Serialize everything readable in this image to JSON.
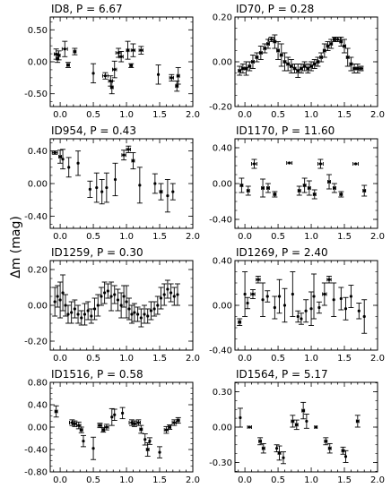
{
  "figure": {
    "ylabel": "Δm (mag)"
  },
  "chart_data": [
    {
      "type": "scatter",
      "title": "ID8, P = 6.67",
      "xlim": [
        -0.15,
        2.0
      ],
      "ylim": [
        -0.7,
        0.7
      ],
      "xticks": [
        "0.0",
        "0.5",
        "1.0",
        "1.5",
        "2.0"
      ],
      "yticks": [
        "-0.50",
        "0.00",
        "0.50"
      ],
      "ytick_values": [
        -0.5,
        0.0,
        0.5
      ],
      "x": [
        -0.06,
        -0.04,
        -0.02,
        0.07,
        0.12,
        0.22,
        0.5,
        0.68,
        0.76,
        0.78,
        0.82,
        0.88,
        0.92,
        1.02,
        1.07,
        1.1,
        1.22,
        1.48,
        1.68,
        1.76,
        1.78
      ],
      "y": [
        0.12,
        0.05,
        0.1,
        0.2,
        -0.05,
        0.16,
        -0.18,
        -0.22,
        -0.3,
        -0.4,
        -0.12,
        0.14,
        0.08,
        0.18,
        -0.06,
        0.18,
        0.18,
        -0.2,
        -0.25,
        -0.38,
        -0.22
      ],
      "yerr": [
        0.08,
        0.06,
        0.07,
        0.12,
        0.04,
        0.05,
        0.15,
        0.05,
        0.08,
        0.1,
        0.13,
        0.07,
        0.08,
        0.14,
        0.03,
        0.1,
        0.06,
        0.15,
        0.05,
        0.08,
        0.13
      ],
      "xerr": [
        0.03,
        0.02,
        0.02,
        0.04,
        0.02,
        0.02,
        0.0,
        0.04,
        0.03,
        0.02,
        0.03,
        0.04,
        0.03,
        0.02,
        0.02,
        0.03,
        0.03,
        0.0,
        0.03,
        0.02,
        0.02
      ]
    },
    {
      "type": "scatter",
      "title": "ID70, P = 0.28",
      "xlim": [
        -0.15,
        2.0
      ],
      "ylim": [
        -0.2,
        0.2
      ],
      "xticks": [
        "0.0",
        "0.5",
        "1.0",
        "1.5",
        "2.0"
      ],
      "yticks": [
        "-0.20",
        "0.00",
        "0.20"
      ],
      "ytick_values": [
        -0.2,
        0.0,
        0.2
      ],
      "x": [
        -0.08,
        -0.03,
        0.02,
        0.07,
        0.12,
        0.18,
        0.24,
        0.3,
        0.35,
        0.4,
        0.45,
        0.5,
        0.55,
        0.6,
        0.65,
        0.7,
        0.75,
        0.8,
        0.85,
        0.9,
        0.95,
        1.0,
        1.05,
        1.1,
        1.15,
        1.2,
        1.25,
        1.3,
        1.35,
        1.4,
        1.45,
        1.5,
        1.55,
        1.6,
        1.65,
        1.7,
        1.75
      ],
      "y": [
        -0.04,
        -0.03,
        -0.03,
        -0.02,
        0.0,
        0.02,
        0.04,
        0.06,
        0.08,
        0.1,
        0.09,
        0.05,
        0.03,
        0.0,
        -0.01,
        -0.02,
        -0.03,
        -0.04,
        -0.03,
        -0.02,
        -0.03,
        -0.02,
        -0.01,
        0.0,
        0.02,
        0.05,
        0.07,
        0.08,
        0.1,
        0.1,
        0.09,
        0.07,
        0.02,
        -0.01,
        -0.03,
        -0.03,
        -0.03
      ],
      "yerr": [
        0.02,
        0.02,
        0.03,
        0.02,
        0.03,
        0.02,
        0.03,
        0.02,
        0.02,
        0.01,
        0.03,
        0.04,
        0.05,
        0.04,
        0.03,
        0.03,
        0.02,
        0.03,
        0.02,
        0.02,
        0.02,
        0.02,
        0.02,
        0.02,
        0.02,
        0.03,
        0.02,
        0.02,
        0.01,
        0.01,
        0.02,
        0.03,
        0.04,
        0.03,
        0.02,
        0.02,
        0.01
      ],
      "xerr": [
        0.02,
        0.02,
        0.02,
        0.02,
        0.02,
        0.02,
        0.02,
        0.02,
        0.02,
        0.04,
        0.02,
        0.02,
        0.02,
        0.02,
        0.02,
        0.02,
        0.02,
        0.02,
        0.02,
        0.02,
        0.02,
        0.02,
        0.02,
        0.02,
        0.02,
        0.02,
        0.02,
        0.02,
        0.02,
        0.04,
        0.02,
        0.02,
        0.02,
        0.02,
        0.02,
        0.02,
        0.03
      ]
    },
    {
      "type": "scatter",
      "title": "ID954, P = 0.43",
      "xlim": [
        -0.15,
        2.0
      ],
      "ylim": [
        -0.55,
        0.55
      ],
      "xticks": [
        "0.0",
        "0.5",
        "1.0",
        "1.5",
        "2.0"
      ],
      "yticks": [
        "-0.40",
        "0.00",
        "0.40"
      ],
      "ytick_values": [
        -0.4,
        0.0,
        0.4
      ],
      "x": [
        -0.08,
        0.0,
        0.04,
        0.13,
        0.27,
        0.45,
        0.55,
        0.63,
        0.7,
        0.83,
        0.96,
        1.03,
        1.1,
        1.2,
        1.43,
        1.52,
        1.62,
        1.7
      ],
      "y": [
        0.38,
        0.33,
        0.3,
        0.2,
        0.25,
        -0.07,
        -0.05,
        -0.1,
        -0.05,
        0.05,
        0.35,
        0.42,
        0.28,
        -0.02,
        0.0,
        -0.1,
        -0.15,
        -0.1
      ],
      "yerr": [
        0.02,
        0.08,
        0.12,
        0.12,
        0.15,
        0.1,
        0.18,
        0.15,
        0.18,
        0.2,
        0.06,
        0.04,
        0.1,
        0.22,
        0.12,
        0.1,
        0.2,
        0.1
      ],
      "xerr": [
        0.04,
        0.02,
        0.0,
        0.0,
        0.0,
        0.0,
        0.0,
        0.0,
        0.0,
        0.0,
        0.03,
        0.03,
        0.02,
        0.0,
        0.0,
        0.02,
        0.0,
        0.0
      ]
    },
    {
      "type": "scatter",
      "title": "ID1170, P = 11.60",
      "xlim": [
        -0.15,
        2.0
      ],
      "ylim": [
        -0.5,
        0.5
      ],
      "xticks": [
        "0.0",
        "0.5",
        "1.0",
        "1.5",
        "2.0"
      ],
      "yticks": [
        "-0.40",
        "0.00",
        "0.40"
      ],
      "ytick_values": [
        -0.4,
        0.0,
        0.4
      ],
      "x": [
        -0.05,
        0.05,
        0.14,
        0.27,
        0.35,
        0.45,
        0.67,
        0.82,
        0.9,
        0.97,
        1.05,
        1.14,
        1.27,
        1.35,
        1.45,
        1.67,
        1.8
      ],
      "y": [
        -0.02,
        -0.08,
        0.22,
        -0.05,
        -0.05,
        -0.12,
        0.23,
        -0.08,
        -0.02,
        -0.05,
        -0.12,
        0.22,
        0.02,
        -0.05,
        -0.12,
        0.22,
        -0.08
      ],
      "yerr": [
        0.08,
        0.05,
        0.05,
        0.1,
        0.05,
        0.03,
        0.0,
        0.05,
        0.08,
        0.08,
        0.05,
        0.05,
        0.08,
        0.05,
        0.03,
        0.0,
        0.06
      ],
      "xerr": [
        0.02,
        0.02,
        0.04,
        0.02,
        0.02,
        0.02,
        0.04,
        0.02,
        0.02,
        0.02,
        0.02,
        0.04,
        0.02,
        0.02,
        0.02,
        0.04,
        0.02
      ]
    },
    {
      "type": "scatter",
      "title": "ID1259, P = 0.30",
      "xlim": [
        -0.15,
        2.0
      ],
      "ylim": [
        -0.25,
        0.25
      ],
      "xticks": [
        "0.0",
        "0.5",
        "1.0",
        "1.5",
        "2.0"
      ],
      "yticks": [
        "-0.20",
        "0.00",
        "0.20"
      ],
      "ytick_values": [
        -0.2,
        0.0,
        0.2
      ],
      "x": [
        -0.08,
        -0.04,
        0.0,
        0.04,
        0.08,
        0.12,
        0.17,
        0.22,
        0.27,
        0.32,
        0.37,
        0.42,
        0.47,
        0.52,
        0.57,
        0.62,
        0.67,
        0.72,
        0.77,
        0.82,
        0.87,
        0.92,
        0.96,
        1.0,
        1.04,
        1.08,
        1.12,
        1.17,
        1.22,
        1.27,
        1.32,
        1.37,
        1.42,
        1.47,
        1.52,
        1.57,
        1.62,
        1.67,
        1.72,
        1.77
      ],
      "y": [
        0.02,
        0.05,
        0.03,
        0.07,
        0.0,
        -0.05,
        -0.04,
        -0.02,
        -0.05,
        -0.07,
        -0.05,
        -0.03,
        -0.06,
        -0.02,
        0.0,
        0.05,
        0.07,
        0.08,
        0.05,
        0.06,
        0.03,
        0.0,
        0.05,
        0.02,
        -0.02,
        -0.05,
        -0.04,
        -0.05,
        -0.07,
        -0.05,
        -0.06,
        -0.03,
        -0.02,
        0.0,
        0.04,
        0.06,
        0.09,
        0.07,
        0.05,
        0.06
      ],
      "yerr": [
        0.08,
        0.06,
        0.1,
        0.1,
        0.06,
        0.05,
        0.06,
        0.05,
        0.05,
        0.04,
        0.06,
        0.05,
        0.04,
        0.06,
        0.06,
        0.05,
        0.06,
        0.04,
        0.08,
        0.05,
        0.06,
        0.07,
        0.06,
        0.09,
        0.06,
        0.05,
        0.05,
        0.04,
        0.05,
        0.05,
        0.04,
        0.05,
        0.04,
        0.05,
        0.06,
        0.06,
        0.05,
        0.05,
        0.05,
        0.06
      ],
      "xerr": [
        0.0,
        0.0,
        0.0,
        0.0,
        0.0,
        0.0,
        0.0,
        0.0,
        0.0,
        0.0,
        0.0,
        0.0,
        0.0,
        0.0,
        0.0,
        0.0,
        0.0,
        0.0,
        0.0,
        0.0,
        0.0,
        0.0,
        0.0,
        0.0,
        0.0,
        0.0,
        0.0,
        0.0,
        0.0,
        0.0,
        0.0,
        0.0,
        0.0,
        0.0,
        0.0,
        0.0,
        0.0,
        0.0,
        0.0,
        0.0
      ]
    },
    {
      "type": "scatter",
      "title": "ID1269, P = 2.40",
      "xlim": [
        -0.15,
        2.0
      ],
      "ylim": [
        -0.4,
        0.4
      ],
      "xticks": [
        "0.0",
        "0.5",
        "1.0",
        "1.5",
        "2.0"
      ],
      "yticks": [
        "-0.40",
        "0.00",
        "0.40"
      ],
      "ytick_values": [
        -0.4,
        0.0,
        0.4
      ],
      "x": [
        -0.08,
        0.0,
        0.04,
        0.12,
        0.2,
        0.27,
        0.34,
        0.45,
        0.52,
        0.6,
        0.72,
        0.8,
        0.85,
        0.92,
        1.0,
        1.04,
        1.12,
        1.2,
        1.27,
        1.34,
        1.45,
        1.52,
        1.6,
        1.72,
        1.8
      ],
      "y": [
        -0.15,
        0.1,
        0.02,
        0.1,
        0.23,
        0.05,
        0.08,
        -0.02,
        0.08,
        0.0,
        0.1,
        -0.1,
        -0.12,
        -0.05,
        -0.03,
        0.08,
        -0.02,
        0.1,
        0.23,
        0.05,
        0.06,
        -0.03,
        0.08,
        -0.05,
        -0.1
      ],
      "yerr": [
        0.03,
        0.2,
        0.05,
        0.04,
        0.03,
        0.15,
        0.05,
        0.1,
        0.15,
        0.15,
        0.2,
        0.05,
        0.05,
        0.1,
        0.15,
        0.2,
        0.05,
        0.1,
        0.03,
        0.15,
        0.1,
        0.1,
        0.1,
        0.07,
        0.15
      ],
      "xerr": [
        0.02,
        0.0,
        0.0,
        0.03,
        0.03,
        0.0,
        0.0,
        0.0,
        0.0,
        0.0,
        0.0,
        0.0,
        0.0,
        0.0,
        0.0,
        0.0,
        0.0,
        0.03,
        0.03,
        0.0,
        0.0,
        0.0,
        0.0,
        0.0,
        0.0
      ]
    },
    {
      "type": "scatter",
      "title": "ID1516, P = 0.58",
      "xlim": [
        -0.15,
        2.0
      ],
      "ylim": [
        -0.8,
        0.8
      ],
      "xticks": [
        "0.0",
        "0.5",
        "1.0",
        "1.5",
        "2.0"
      ],
      "yticks": [
        "-0.80",
        "-0.40",
        "0.00",
        "0.40",
        "0.80"
      ],
      "ytick_values": [
        -0.8,
        -0.4,
        0.0,
        0.4,
        0.8
      ],
      "x": [
        -0.06,
        0.18,
        0.22,
        0.28,
        0.32,
        0.35,
        0.5,
        0.6,
        0.65,
        0.7,
        0.78,
        0.82,
        0.94,
        1.08,
        1.12,
        1.18,
        1.22,
        1.28,
        1.32,
        1.35,
        1.5,
        1.6,
        1.65,
        1.72,
        1.78
      ],
      "y": [
        0.28,
        0.08,
        0.06,
        0.03,
        -0.05,
        -0.25,
        -0.38,
        0.03,
        -0.05,
        0.0,
        0.18,
        0.22,
        0.25,
        0.08,
        0.06,
        0.08,
        -0.04,
        -0.22,
        -0.4,
        -0.25,
        -0.45,
        -0.05,
        0.0,
        0.08,
        0.12
      ],
      "yerr": [
        0.1,
        0.05,
        0.05,
        0.06,
        0.05,
        0.1,
        0.2,
        0.04,
        0.04,
        0.05,
        0.15,
        0.1,
        0.1,
        0.05,
        0.05,
        0.05,
        0.07,
        0.1,
        0.12,
        0.06,
        0.1,
        0.06,
        0.04,
        0.05,
        0.05
      ],
      "xerr": [
        0.02,
        0.04,
        0.03,
        0.03,
        0.02,
        0.0,
        0.0,
        0.03,
        0.02,
        0.03,
        0.0,
        0.0,
        0.0,
        0.04,
        0.03,
        0.03,
        0.02,
        0.0,
        0.02,
        0.0,
        0.0,
        0.03,
        0.02,
        0.03,
        0.02
      ]
    },
    {
      "type": "scatter",
      "title": "ID1564, P = 5.17",
      "xlim": [
        -0.15,
        2.0
      ],
      "ylim": [
        -0.38,
        0.38
      ],
      "xticks": [
        "0.0",
        "0.5",
        "1.0",
        "1.5",
        "2.0"
      ],
      "yticks": [
        "-0.30",
        "0.00",
        "0.30"
      ],
      "ytick_values": [
        -0.3,
        0.0,
        0.3
      ],
      "x": [
        -0.07,
        0.07,
        0.23,
        0.28,
        0.48,
        0.52,
        0.58,
        0.72,
        0.78,
        0.88,
        0.93,
        1.07,
        1.22,
        1.28,
        1.48,
        1.52,
        1.7
      ],
      "y": [
        0.08,
        0.0,
        -0.12,
        -0.18,
        -0.18,
        -0.22,
        -0.26,
        0.05,
        0.02,
        0.14,
        0.05,
        0.0,
        -0.12,
        -0.18,
        -0.2,
        -0.25,
        0.05
      ],
      "yerr": [
        0.08,
        0.0,
        0.03,
        0.04,
        0.03,
        0.06,
        0.05,
        0.05,
        0.04,
        0.07,
        0.06,
        0.0,
        0.03,
        0.04,
        0.03,
        0.05,
        0.05
      ],
      "xerr": [
        0.0,
        0.03,
        0.02,
        0.02,
        0.0,
        0.02,
        0.0,
        0.02,
        0.02,
        0.02,
        0.0,
        0.02,
        0.02,
        0.02,
        0.02,
        0.0,
        0.02
      ]
    }
  ]
}
